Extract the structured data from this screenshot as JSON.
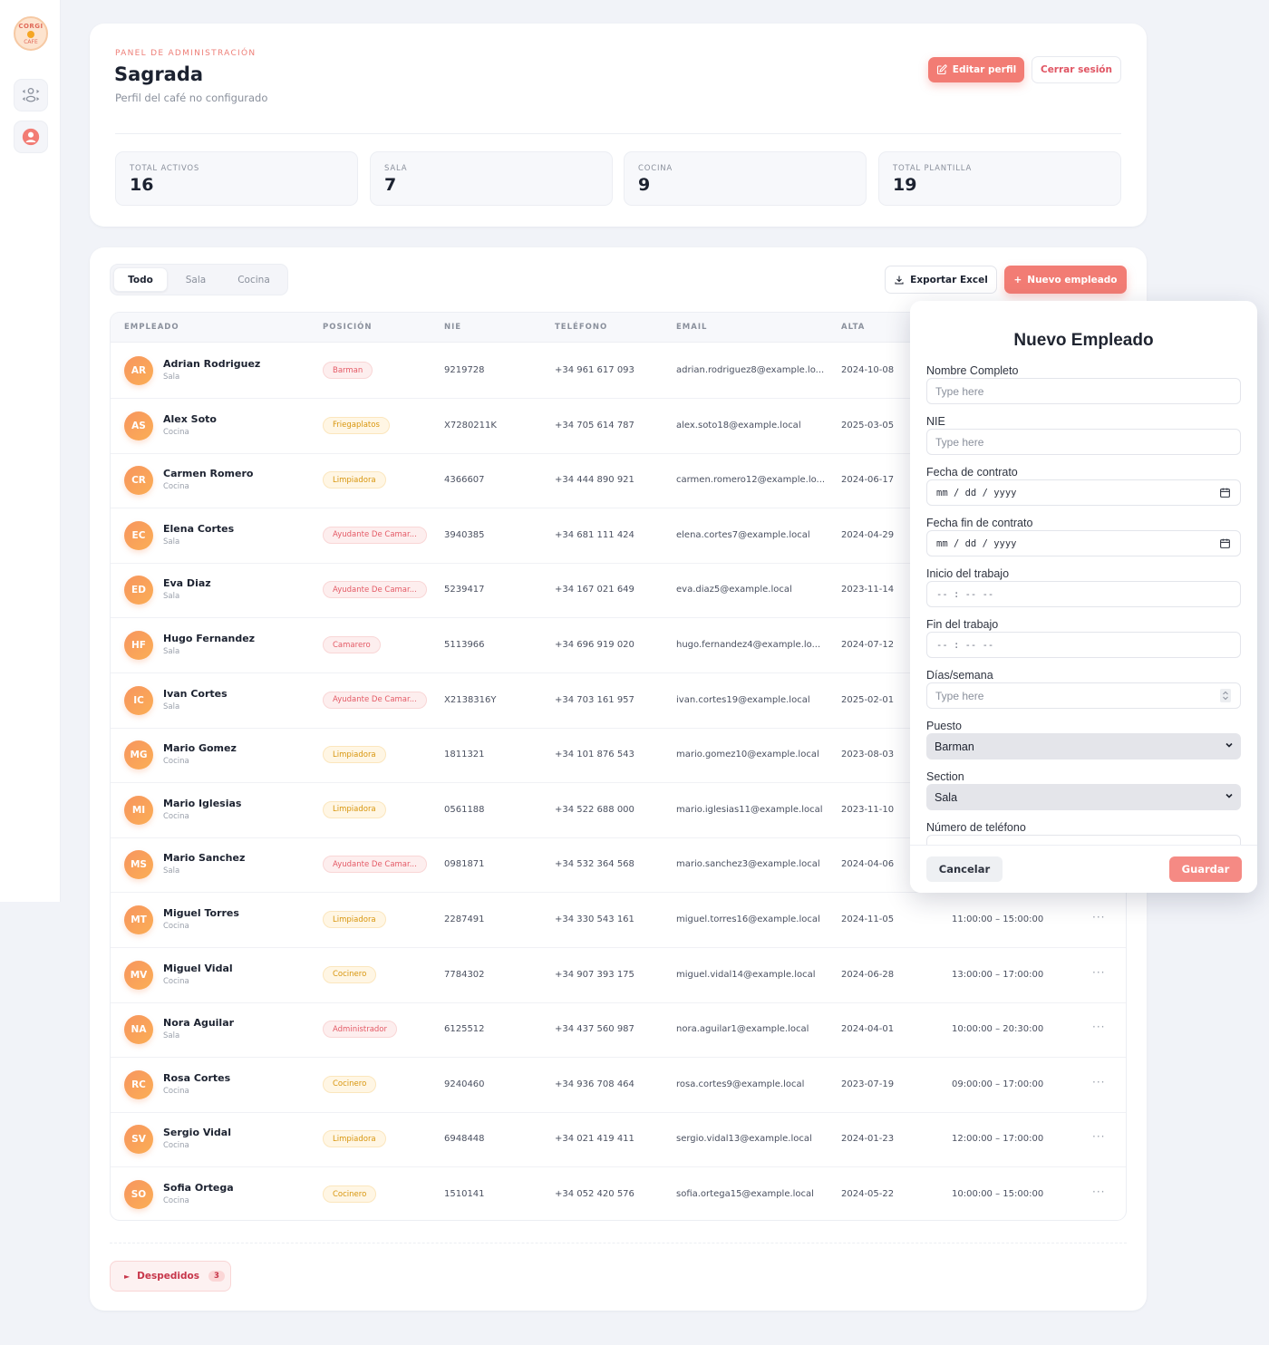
{
  "sidebar": {
    "logo": {
      "line1": "CORGI",
      "line2": "CAFE"
    },
    "items": [
      {
        "name": "staff",
        "icon": "users-icon"
      },
      {
        "name": "profile",
        "icon": "user-circle-icon"
      }
    ]
  },
  "header": {
    "eyebrow": "PANEL DE ADMINISTRACIÓN",
    "title": "Sagrada",
    "subtitle": "Perfil del café no configurado",
    "edit_label": "Editar perfil",
    "logout_label": "Cerrar sesión",
    "stats": [
      {
        "label": "TOTAL ACTIVOS",
        "value": "16"
      },
      {
        "label": "SALA",
        "value": "7"
      },
      {
        "label": "COCINA",
        "value": "9"
      },
      {
        "label": "TOTAL PLANTILLA",
        "value": "19"
      }
    ]
  },
  "toolbar": {
    "tabs": [
      {
        "label": "Todo",
        "active": true
      },
      {
        "label": "Sala",
        "active": false
      },
      {
        "label": "Cocina",
        "active": false
      }
    ],
    "export_label": "Exportar Excel",
    "new_label": "Nuevo empleado"
  },
  "table": {
    "columns": [
      "EMPLEADO",
      "POSICIÓN",
      "NIE",
      "TELÉFONO",
      "EMAIL",
      "ALTA"
    ],
    "rows": [
      {
        "initials": "AR",
        "name": "Adrian Rodriguez",
        "section": "Sala",
        "position": "Barman",
        "tone": "red",
        "nie": "9219728",
        "phone": "+34 961 617 093",
        "email": "adrian.rodriguez8@example.lo...",
        "since": "2024-10-08",
        "schedule": ""
      },
      {
        "initials": "AS",
        "name": "Alex Soto",
        "section": "Cocina",
        "position": "Friegaplatos",
        "tone": "amber",
        "nie": "X7280211K",
        "phone": "+34 705 614 787",
        "email": "alex.soto18@example.local",
        "since": "2025-03-05",
        "schedule": ""
      },
      {
        "initials": "CR",
        "name": "Carmen Romero",
        "section": "Cocina",
        "position": "Limpiadora",
        "tone": "amber",
        "nie": "4366607",
        "phone": "+34 444 890 921",
        "email": "carmen.romero12@example.lo...",
        "since": "2024-06-17",
        "schedule": ""
      },
      {
        "initials": "EC",
        "name": "Elena Cortes",
        "section": "Sala",
        "position": "Ayudante De Camar...",
        "tone": "red",
        "nie": "3940385",
        "phone": "+34 681 111 424",
        "email": "elena.cortes7@example.local",
        "since": "2024-04-29",
        "schedule": ""
      },
      {
        "initials": "ED",
        "name": "Eva Diaz",
        "section": "Sala",
        "position": "Ayudante De Camar...",
        "tone": "red",
        "nie": "5239417",
        "phone": "+34 167 021 649",
        "email": "eva.diaz5@example.local",
        "since": "2023-11-14",
        "schedule": ""
      },
      {
        "initials": "HF",
        "name": "Hugo Fernandez",
        "section": "Sala",
        "position": "Camarero",
        "tone": "red",
        "nie": "5113966",
        "phone": "+34 696 919 020",
        "email": "hugo.fernandez4@example.lo...",
        "since": "2024-07-12",
        "schedule": ""
      },
      {
        "initials": "IC",
        "name": "Ivan Cortes",
        "section": "Sala",
        "position": "Ayudante De Camar...",
        "tone": "red",
        "nie": "X2138316Y",
        "phone": "+34 703 161 957",
        "email": "ivan.cortes19@example.local",
        "since": "2025-02-01",
        "schedule": ""
      },
      {
        "initials": "MG",
        "name": "Mario Gomez",
        "section": "Cocina",
        "position": "Limpiadora",
        "tone": "amber",
        "nie": "1811321",
        "phone": "+34 101 876 543",
        "email": "mario.gomez10@example.local",
        "since": "2023-08-03",
        "schedule": ""
      },
      {
        "initials": "MI",
        "name": "Mario Iglesias",
        "section": "Cocina",
        "position": "Limpiadora",
        "tone": "amber",
        "nie": "0561188",
        "phone": "+34 522 688 000",
        "email": "mario.iglesias11@example.local",
        "since": "2023-11-10",
        "schedule": ""
      },
      {
        "initials": "MS",
        "name": "Mario Sanchez",
        "section": "Sala",
        "position": "Ayudante De Camar...",
        "tone": "red",
        "nie": "0981871",
        "phone": "+34 532 364 568",
        "email": "mario.sanchez3@example.local",
        "since": "2024-04-06",
        "schedule": ""
      },
      {
        "initials": "MT",
        "name": "Miguel Torres",
        "section": "Cocina",
        "position": "Limpiadora",
        "tone": "amber",
        "nie": "2287491",
        "phone": "+34 330 543 161",
        "email": "miguel.torres16@example.local",
        "since": "2024-11-05",
        "schedule": "11:00:00 – 15:00:00"
      },
      {
        "initials": "MV",
        "name": "Miguel Vidal",
        "section": "Cocina",
        "position": "Cocinero",
        "tone": "amber",
        "nie": "7784302",
        "phone": "+34 907 393 175",
        "email": "miguel.vidal14@example.local",
        "since": "2024-06-28",
        "schedule": "13:00:00 – 17:00:00"
      },
      {
        "initials": "NA",
        "name": "Nora Aguilar",
        "section": "Sala",
        "position": "Administrador",
        "tone": "red",
        "nie": "6125512",
        "phone": "+34 437 560 987",
        "email": "nora.aguilar1@example.local",
        "since": "2024-04-01",
        "schedule": "10:00:00 – 20:30:00"
      },
      {
        "initials": "RC",
        "name": "Rosa Cortes",
        "section": "Cocina",
        "position": "Cocinero",
        "tone": "amber",
        "nie": "9240460",
        "phone": "+34 936 708 464",
        "email": "rosa.cortes9@example.local",
        "since": "2023-07-19",
        "schedule": "09:00:00 – 17:00:00"
      },
      {
        "initials": "SV",
        "name": "Sergio Vidal",
        "section": "Cocina",
        "position": "Limpiadora",
        "tone": "amber",
        "nie": "6948448",
        "phone": "+34 021 419 411",
        "email": "sergio.vidal13@example.local",
        "since": "2024-01-23",
        "schedule": "12:00:00 – 17:00:00"
      },
      {
        "initials": "SO",
        "name": "Sofia Ortega",
        "section": "Cocina",
        "position": "Cocinero",
        "tone": "amber",
        "nie": "1510141",
        "phone": "+34 052 420 576",
        "email": "sofia.ortega15@example.local",
        "since": "2024-05-22",
        "schedule": "10:00:00 – 15:00:00"
      }
    ],
    "more_label": "···"
  },
  "fired": {
    "label": "Despedidos",
    "count": "3"
  },
  "modal": {
    "title": "Nuevo Empleado",
    "fields": [
      {
        "label": "Nombre Completo",
        "type": "text",
        "placeholder": "Type here"
      },
      {
        "label": "NIE",
        "type": "text",
        "placeholder": "Type here"
      },
      {
        "label": "Fecha de contrato",
        "type": "date",
        "placeholder": "mm / dd / yyyy"
      },
      {
        "label": "Fecha fin de contrato",
        "type": "date",
        "placeholder": "mm / dd / yyyy"
      },
      {
        "label": "Inicio del trabajo",
        "type": "time",
        "placeholder": "-- : --  --"
      },
      {
        "label": "Fin del trabajo",
        "type": "time",
        "placeholder": "-- : --  --"
      },
      {
        "label": "Días/semana",
        "type": "number",
        "placeholder": "Type here"
      },
      {
        "label": "Puesto",
        "type": "select",
        "value": "Barman"
      },
      {
        "label": "Section",
        "type": "select",
        "value": "Sala"
      },
      {
        "label": "Número de teléfono",
        "type": "text",
        "placeholder": ""
      }
    ],
    "cancel_label": "Cancelar",
    "save_label": "Guardar"
  },
  "colors": {
    "accent": "#f27c74",
    "danger": "#e05563",
    "amber": "#d8960e",
    "background": "#f1f3f8"
  }
}
